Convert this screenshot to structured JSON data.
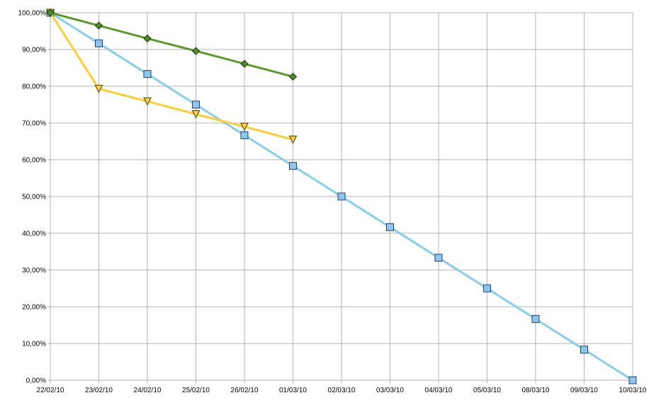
{
  "chart_data": {
    "type": "line",
    "title": "",
    "xlabel": "",
    "ylabel": "",
    "categories": [
      "22/02/10",
      "23/02/10",
      "24/02/10",
      "25/02/10",
      "26/02/10",
      "01/03/10",
      "02/03/10",
      "03/03/10",
      "04/03/10",
      "05/03/10",
      "08/03/10",
      "09/03/10",
      "10/03/10"
    ],
    "y_ticks": [
      "0,00%",
      "10,00%",
      "20,00%",
      "30,00%",
      "40,00%",
      "50,00%",
      "60,00%",
      "70,00%",
      "80,00%",
      "90,00%",
      "100,00%"
    ],
    "ylim": [
      0,
      100
    ],
    "y_step": 10,
    "grid": true,
    "legend": "none",
    "series": [
      {
        "color": "#87ceeb",
        "marker": "square",
        "values": [
          100,
          91.67,
          83.33,
          75.0,
          66.67,
          58.33,
          50.0,
          41.67,
          33.33,
          25.0,
          16.67,
          8.33,
          0.0
        ]
      },
      {
        "color": "#ffcc33",
        "marker": "triangle-down",
        "values": [
          100,
          79.3,
          75.9,
          72.4,
          69.0,
          65.5,
          null,
          null,
          null,
          null,
          null,
          null,
          null
        ]
      },
      {
        "color": "#5a9a2a",
        "marker": "diamond",
        "values": [
          100,
          96.5,
          93.0,
          89.6,
          86.1,
          82.6,
          null,
          null,
          null,
          null,
          null,
          null,
          null
        ]
      }
    ]
  }
}
